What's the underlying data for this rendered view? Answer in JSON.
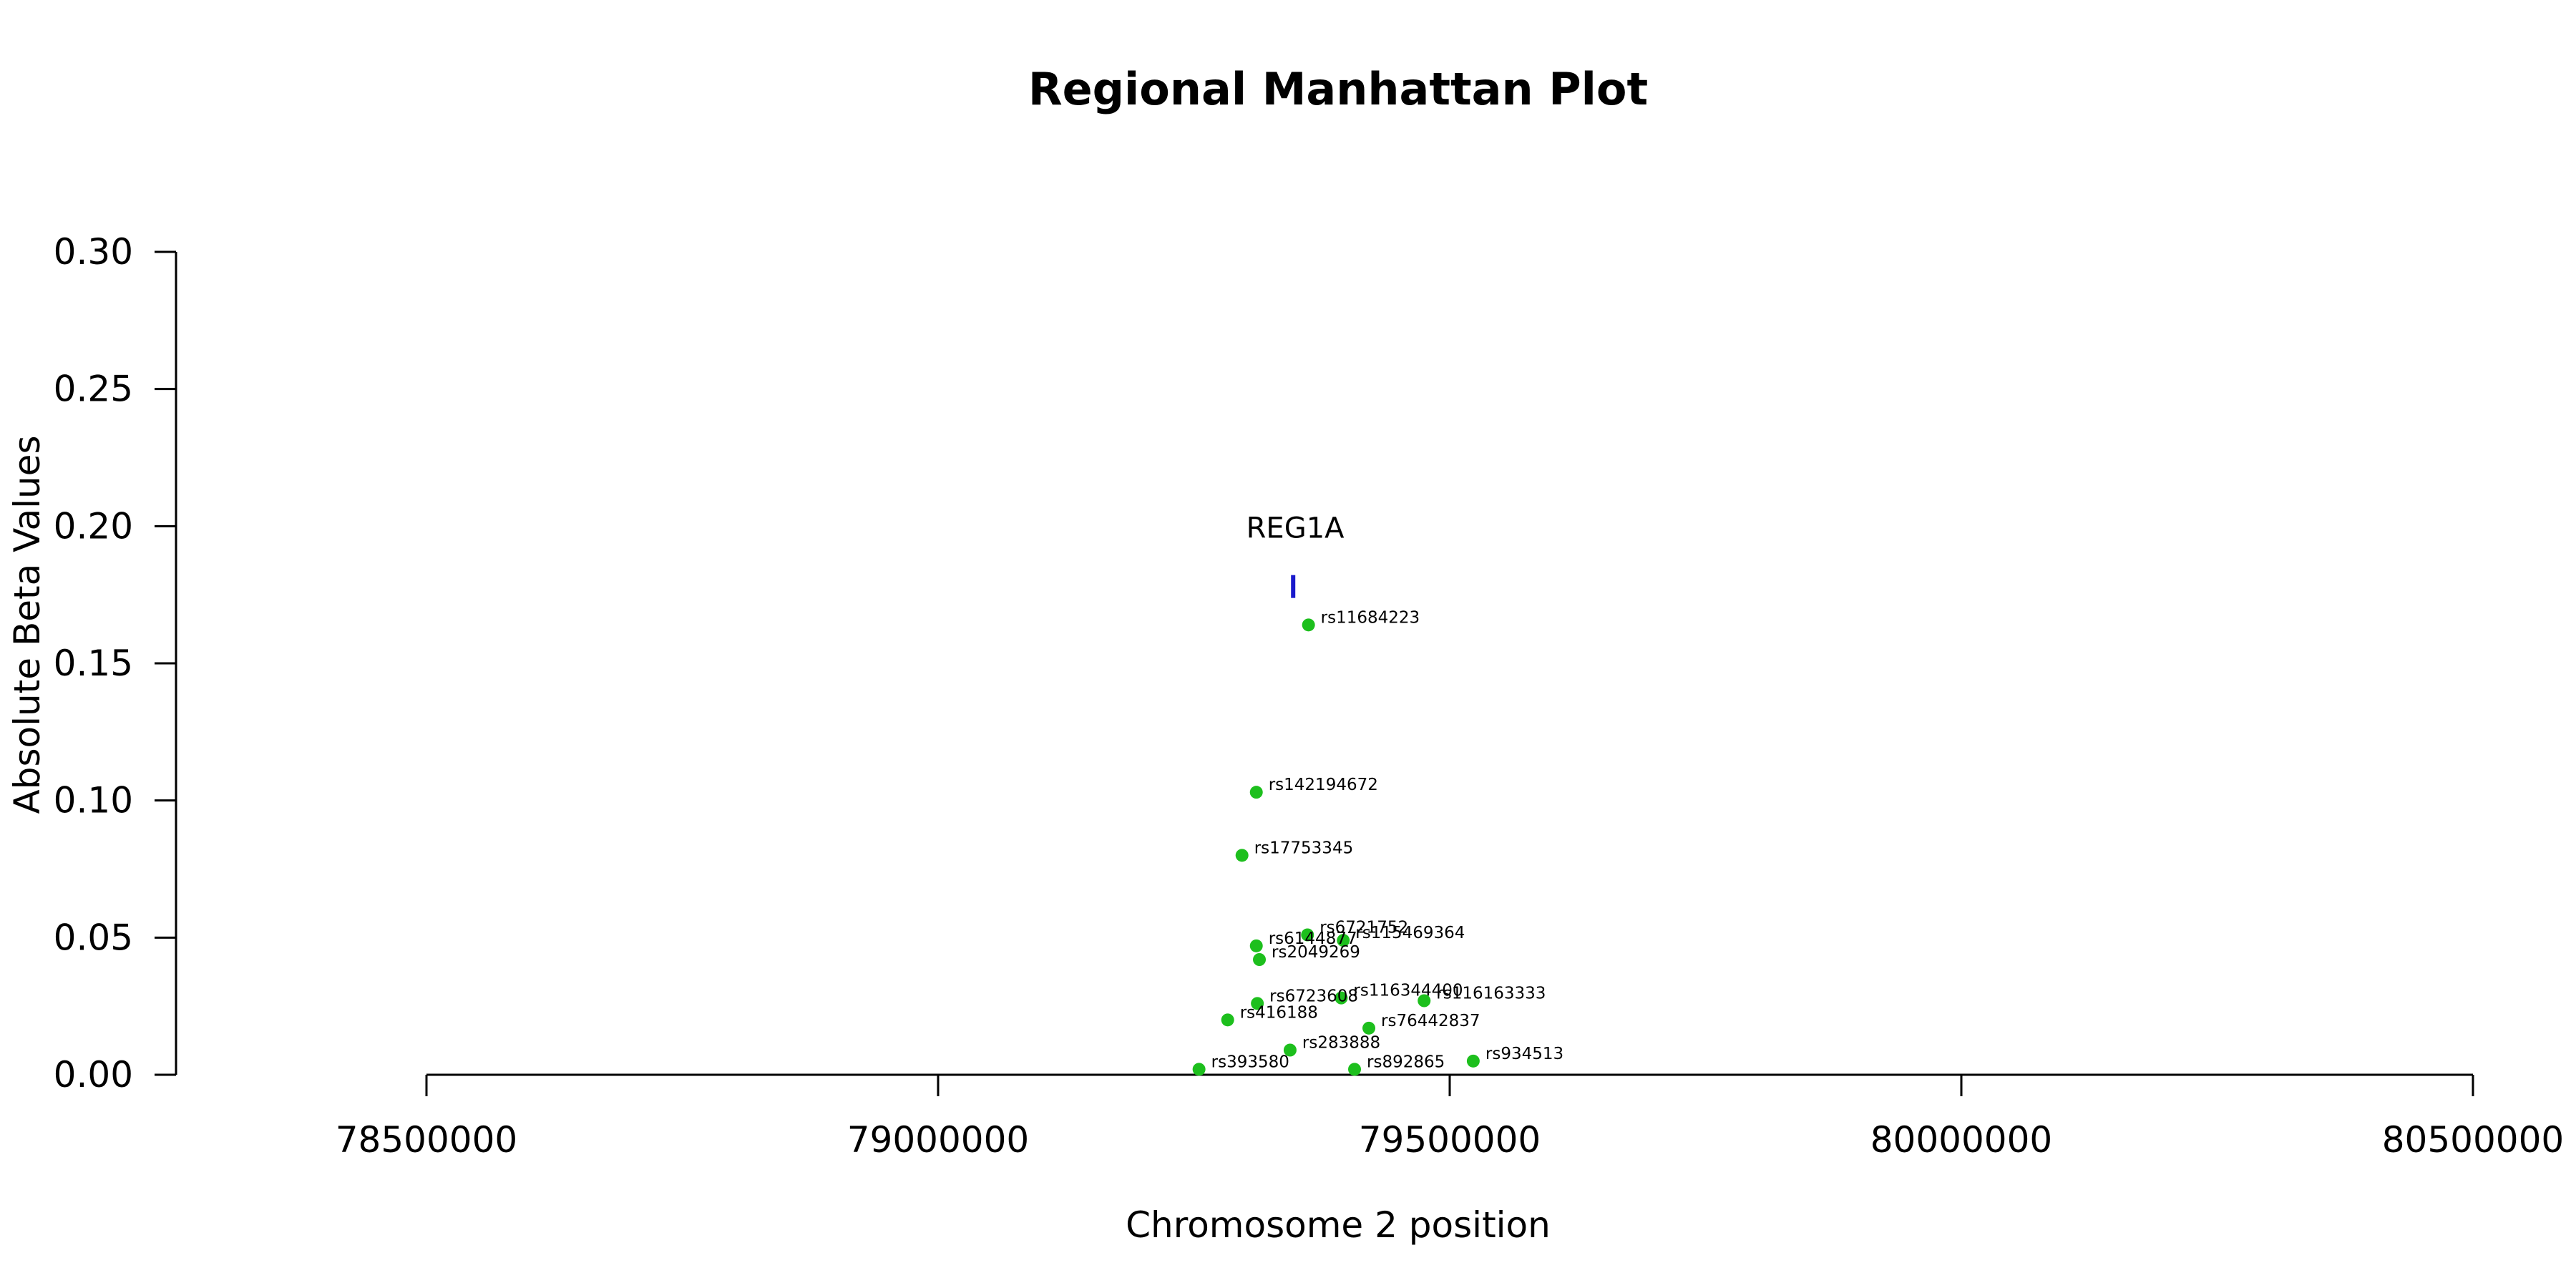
{
  "chart_data": {
    "type": "scatter",
    "title": "Regional Manhattan Plot",
    "xlabel": "Chromosome 2 position",
    "ylabel": "Absolute Beta Values",
    "xlim": [
      78500000,
      80500000
    ],
    "ylim": [
      0,
      0.3
    ],
    "x_ticks": [
      78500000,
      79000000,
      79500000,
      80000000,
      80500000
    ],
    "x_tick_labels": [
      "78500000",
      "79000000",
      "79500000",
      "80000000",
      "80500000"
    ],
    "y_ticks": [
      0,
      0.05,
      0.1,
      0.15,
      0.2,
      0.25,
      0.3
    ],
    "y_tick_labels": [
      "0.00",
      "0.05",
      "0.10",
      "0.15",
      "0.20",
      "0.25",
      "0.30"
    ],
    "grid": false,
    "point_color": "#1dbf1d",
    "gene_color": "#1a1acc",
    "genes": [
      {
        "name": "REG1A",
        "start": 79347000,
        "end": 79351000,
        "y": 0.178
      }
    ],
    "points": [
      {
        "label": "rs11684223",
        "x": 79362000,
        "y": 0.164
      },
      {
        "label": "rs142194672",
        "x": 79311000,
        "y": 0.103
      },
      {
        "label": "rs17753345",
        "x": 79297000,
        "y": 0.08
      },
      {
        "label": "rs6721752",
        "x": 79361000,
        "y": 0.051
      },
      {
        "label": "rs115469364",
        "x": 79396000,
        "y": 0.049
      },
      {
        "label": "rs6144877",
        "x": 79311000,
        "y": 0.047
      },
      {
        "label": "rs2049269",
        "x": 79314000,
        "y": 0.042
      },
      {
        "label": "rs116344400",
        "x": 79394000,
        "y": 0.028
      },
      {
        "label": "rs116163333",
        "x": 79475000,
        "y": 0.027
      },
      {
        "label": "rs6723608",
        "x": 79312000,
        "y": 0.026
      },
      {
        "label": "rs416188",
        "x": 79283000,
        "y": 0.02
      },
      {
        "label": "rs76442837",
        "x": 79421000,
        "y": 0.017
      },
      {
        "label": "rs283888",
        "x": 79344000,
        "y": 0.009
      },
      {
        "label": "rs934513",
        "x": 79523000,
        "y": 0.005
      },
      {
        "label": "rs393580",
        "x": 79255000,
        "y": 0.002
      },
      {
        "label": "rs892865",
        "x": 79407000,
        "y": 0.002
      }
    ]
  }
}
